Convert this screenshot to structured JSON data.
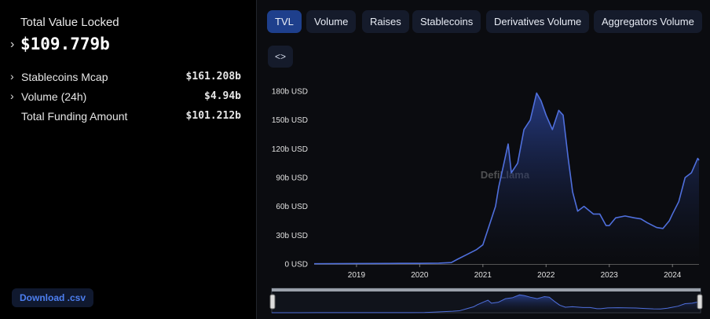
{
  "sidebar": {
    "tvl_label": "Total Value Locked",
    "tvl_value": "$109.779b",
    "rows": [
      {
        "label": "Stablecoins Mcap",
        "value": "$161.208b"
      },
      {
        "label": "Volume (24h)",
        "value": "$4.94b"
      },
      {
        "label": "Total Funding Amount",
        "value": "$101.212b"
      }
    ],
    "download": "Download .csv"
  },
  "tabs": [
    "TVL",
    "Volume",
    "Raises",
    "Stablecoins",
    "Derivatives Volume",
    "Aggregators Volume"
  ],
  "chart_data": {
    "type": "area",
    "watermark": "DefiLlama",
    "color": "#4f6fdc",
    "x": [
      2018.33,
      2019,
      2019.5,
      2020,
      2020.3,
      2020.5,
      2020.6,
      2020.75,
      2020.9,
      2021.0,
      2021.1,
      2021.2,
      2021.25,
      2021.35,
      2021.4,
      2021.45,
      2021.55,
      2021.65,
      2021.75,
      2021.85,
      2021.92,
      2022.0,
      2022.1,
      2022.2,
      2022.27,
      2022.35,
      2022.42,
      2022.5,
      2022.6,
      2022.75,
      2022.85,
      2022.95,
      2023.0,
      2023.1,
      2023.25,
      2023.4,
      2023.5,
      2023.6,
      2023.75,
      2023.85,
      2023.95,
      2024.0,
      2024.1,
      2024.2,
      2024.3,
      2024.4,
      2024.42
    ],
    "values": [
      0.3,
      0.5,
      0.6,
      0.7,
      0.9,
      1.5,
      5,
      10,
      15,
      20,
      40,
      60,
      80,
      110,
      125,
      95,
      105,
      140,
      150,
      178,
      170,
      155,
      140,
      160,
      155,
      110,
      75,
      55,
      60,
      52,
      52,
      40,
      40,
      48,
      50,
      48,
      47,
      43,
      38,
      37,
      45,
      52,
      65,
      90,
      95,
      110,
      108
    ],
    "xlim": [
      2018.33,
      2024.42
    ],
    "xticks": [
      2019,
      2020,
      2021,
      2022,
      2023,
      2024
    ],
    "ylim": [
      0,
      180
    ],
    "yticks": [
      {
        "value": 0,
        "label": "0 USD"
      },
      {
        "value": 30,
        "label": "30b USD"
      },
      {
        "value": 60,
        "label": "60b USD"
      },
      {
        "value": 90,
        "label": "90b USD"
      },
      {
        "value": 120,
        "label": "120b USD"
      },
      {
        "value": 150,
        "label": "150b USD"
      },
      {
        "value": 180,
        "label": "180b USD"
      }
    ]
  }
}
